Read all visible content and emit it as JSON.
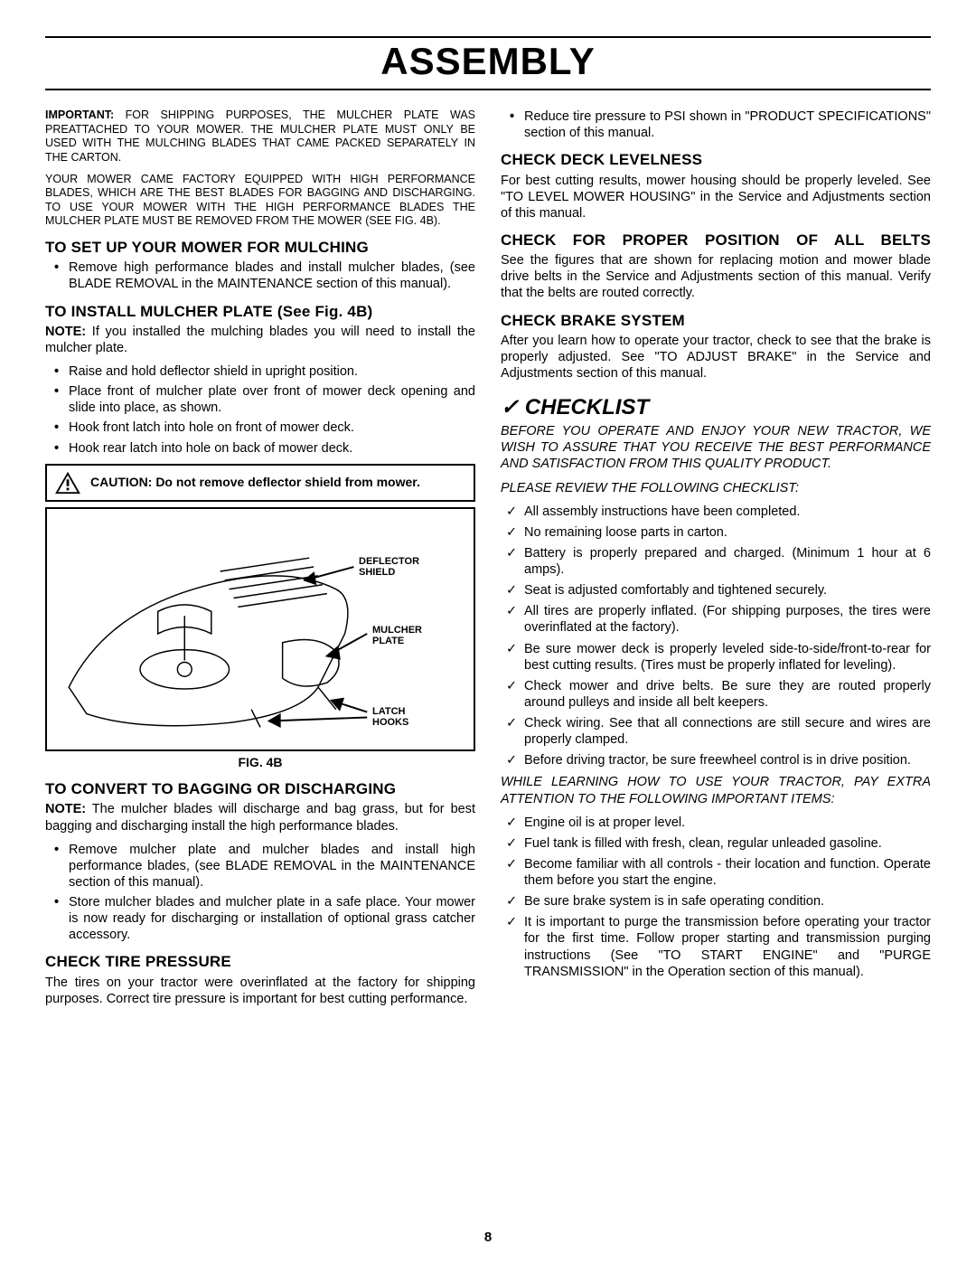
{
  "page": {
    "title": "ASSEMBLY",
    "pagenum": "8"
  },
  "left": {
    "important_label": "IMPORTANT:",
    "important_text": " FOR SHIPPING PURPOSES, THE MULCHER PLATE WAS PREATTACHED TO YOUR MOWER. THE MULCHER PLATE MUST ONLY BE USED WITH THE MULCHING BLADES THAT CAME PACKED SEPARATELY IN THE CARTON.",
    "factory_text": "YOUR MOWER CAME FACTORY EQUIPPED WITH HIGH PERFORMANCE BLADES, WHICH ARE THE BEST BLADES FOR BAGGING AND DISCHARGING. TO USE YOUR MOWER WITH THE HIGH PERFORMANCE BLADES THE MULCHER PLATE MUST BE REMOVED FROM THE MOWER (SEE FIG. 4B).",
    "h_setup": "TO SET UP YOUR MOWER FOR MULCHING",
    "setup_b1": "Remove high performance blades and install mulcher blades, (see BLADE REMOVAL in the MAINTENANCE section of this manual).",
    "h_install": "TO INSTALL MULCHER PLATE (See Fig. 4B)",
    "install_note_label": "NOTE:",
    "install_note": " If you installed the mulching blades you will need to install the mulcher plate.",
    "install_b1": "Raise and hold deflector shield in upright position.",
    "install_b2": "Place front of mulcher plate over front of mower deck opening and slide into place, as shown.",
    "install_b3": "Hook front latch into hole on front of mower deck.",
    "install_b4": "Hook rear latch into hole on back of mower deck.",
    "caution": "CAUTION: Do not remove deflector shield from mower.",
    "fig_labels": {
      "deflector": "DEFLECTOR SHIELD",
      "mulcher": "MULCHER PLATE",
      "latch": "LATCH HOOKS"
    },
    "fig_caption": "FIG. 4B",
    "h_convert": "TO CONVERT TO BAGGING OR DISCHARGING",
    "convert_note_label": "NOTE:",
    "convert_note": " The mulcher blades will discharge and bag grass, but for best bagging and discharging install the high per­for­mance blades.",
    "convert_b1": "Remove mulcher plate and mulcher blades and install high performance blades, (see BLADE REMOVAL in the MAINTENANCE section of this manual).",
    "convert_b2": "Store mulcher blades and mulcher plate in a safe place. Your mower is now ready for discharging or installation of optional grass catcher accessory.",
    "h_tire": "CHECK TIRE PRESSURE",
    "tire_p": "The tires on your tractor were overinflated at the factory for shipping purposes.  Correct tire pressure is important for best cutting performance."
  },
  "right": {
    "tire_b1": "Reduce tire pressure to PSI shown in \"PRODUCT SPECIFICATIONS\" section of this manual.",
    "h_deck": "CHECK DECK LEVELNESS",
    "deck_p": "For best cutting results, mower housing should be properly leveled. See \"TO LEVEL MOWER HOUSING\" in the Service and Adjustments section of this manual.",
    "h_belts": "CHECK FOR PROPER POSITION OF ALL BELTS",
    "belts_p": "See the figures that are shown for replacing motion and mower blade drive belts in the Service and Adjustments section of this manual.  Verify that the belts are routed correctly.",
    "h_brake": "CHECK BRAKE SYSTEM",
    "brake_p": "After you learn how to operate your tractor, check to see that the brake is properly adjusted.  See \"TO ADJUST BRAKE\" in the Service and Adjustments section of this manual.",
    "checklist_h": "✓ CHECKLIST",
    "checklist_intro": "BEFORE YOU OPERATE AND ENJOY YOUR NEW TRAC­TOR, WE WISH TO ASSURE THAT YOU RECEIVE THE BEST PERFORMANCE AND SATISFACTION FROM THIS QUALITY PRODUCT.",
    "checklist_review": "PLEASE REVIEW THE FOLLOWING CHECKLIST:",
    "cl": [
      "All assembly instructions have been completed.",
      "No remaining loose parts in carton.",
      "Battery is properly prepared and charged.  (Minimum 1 hour at 6 amps).",
      "Seat is adjusted comfortably and tightened securely.",
      "All tires are properly inflated.  (For shipping purposes, the tires were overinflated at the factory).",
      "Be sure mower deck is properly leveled side-to-side/front-to-rear for best cutting results.  (Tires must be properly inflated for leveling).",
      "Check mower and drive belts.  Be sure they are routed properly around pulleys and inside all belt keepers.",
      "Check wiring.  See that all connections are still secure and wires are properly clamped.",
      "Before driving tractor, be sure freewheel control is in drive position."
    ],
    "while_learning": "WHILE LEARNING HOW TO USE YOUR TRACTOR, PAY EXTRA ATTENTION TO THE FOLLOWING IMPORTANT ITEMS:",
    "cl2": [
      "Engine oil is at proper level.",
      "Fuel tank is filled with fresh, clean, regular unleaded gasoline.",
      "Become familiar with all controls - their location and function.  Operate them before you start the engine.",
      "Be sure brake system is in safe operating condition.",
      "It is important to purge the transmission before oper­ating your tractor for the first time.  Follow proper start­ing and transmission purging instructions (See \"TO START ENGINE\" and \"PURGE TRANSMISSION\" in the Operation section of this manual)."
    ]
  }
}
